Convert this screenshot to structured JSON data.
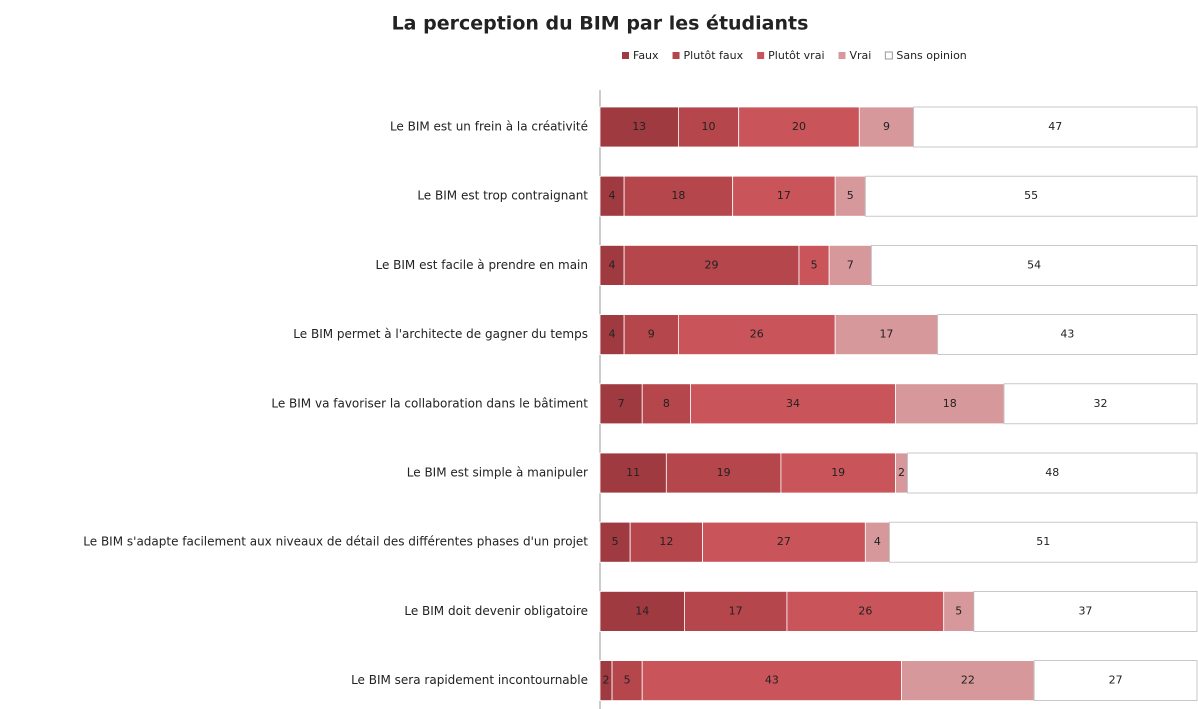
{
  "chart_data": {
    "type": "stacked_barh",
    "title": "La perception du BIM par les étudiants",
    "categories": [
      "Le BIM est un frein à la créativité",
      "Le BIM est trop contraignant",
      "Le BIM est facile à prendre en main",
      "Le BIM permet à l'architecte de gagner du temps",
      "Le BIM va favoriser la collaboration dans le bâtiment",
      "Le BIM est simple à manipuler",
      "Le BIM s'adapte facilement aux niveaux de détail des différentes phases d'un projet",
      "Le BIM doit devenir obligatoire",
      "Le BIM sera rapidement incontournable"
    ],
    "series": [
      {
        "name": "Faux",
        "color": "#9e3a40",
        "values": [
          13,
          4,
          4,
          4,
          7,
          11,
          5,
          14,
          2
        ]
      },
      {
        "name": "Plutôt faux",
        "color": "#b5464c",
        "values": [
          10,
          18,
          29,
          9,
          8,
          19,
          12,
          17,
          5
        ]
      },
      {
        "name": "Plutôt vrai",
        "color": "#c9545a",
        "values": [
          20,
          17,
          5,
          26,
          34,
          19,
          27,
          26,
          43
        ]
      },
      {
        "name": "Vrai",
        "color": "#d6989b",
        "values": [
          9,
          5,
          7,
          17,
          18,
          2,
          4,
          5,
          22
        ]
      },
      {
        "name": "Sans opinion",
        "color": "#ffffff",
        "values": [
          47,
          55,
          54,
          43,
          32,
          48,
          51,
          37,
          27
        ]
      }
    ],
    "legend": "top"
  }
}
